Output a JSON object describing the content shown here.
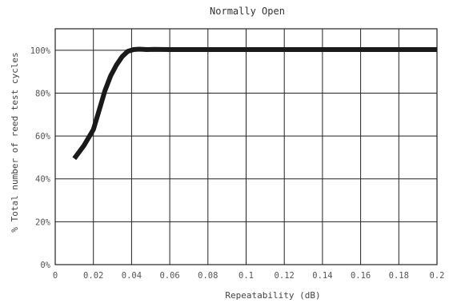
{
  "chart_data": {
    "type": "line",
    "title": "Normally Open",
    "xlabel": "Repeatability (dB)",
    "ylabel": "% Total number of reed test cycles",
    "xlim": [
      0,
      0.2
    ],
    "ylim": [
      0,
      110
    ],
    "x_ticks": [
      0,
      0.02,
      0.04,
      0.06,
      0.08,
      0.1,
      0.12,
      0.14,
      0.16,
      0.18,
      0.2
    ],
    "x_tick_labels": [
      "0",
      "0.02",
      "0.04",
      "0.06",
      "0.08",
      "0.1",
      "0.12",
      "0.14",
      "0.16",
      "0.18",
      "0.2"
    ],
    "y_ticks": [
      0,
      20,
      40,
      60,
      80,
      100
    ],
    "y_tick_labels": [
      "0%",
      "20%",
      "40%",
      "60%",
      "80%",
      "100%"
    ],
    "grid": true,
    "series": [
      {
        "color": "#1a1a1a",
        "x": [
          0.01,
          0.015,
          0.02,
          0.023,
          0.026,
          0.029,
          0.032,
          0.035,
          0.038,
          0.041,
          0.044,
          0.048,
          0.052,
          0.06,
          0.08,
          0.1,
          0.12,
          0.14,
          0.16,
          0.18,
          0.2
        ],
        "y": [
          49.5,
          55.5,
          63,
          72,
          81,
          88,
          93,
          97,
          99.5,
          100.3,
          100.5,
          100.3,
          100.4,
          100.3,
          100.3,
          100.3,
          100.3,
          100.3,
          100.3,
          100.3,
          100.3
        ]
      }
    ]
  }
}
